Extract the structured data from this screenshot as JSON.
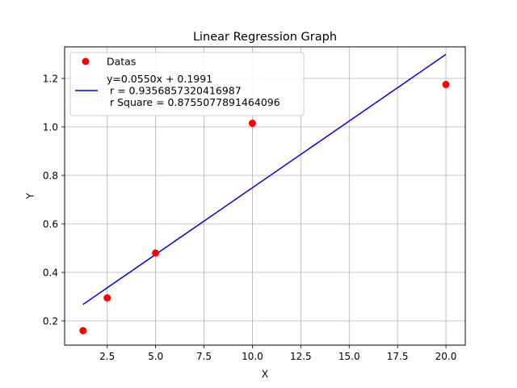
{
  "chart_data": {
    "type": "scatter",
    "title": "Linear Regression Graph",
    "xlabel": "X",
    "ylabel": "Y",
    "xlim": [
      0.3,
      21.0
    ],
    "ylim": [
      0.1,
      1.33
    ],
    "xticks": [
      2.5,
      5.0,
      7.5,
      10.0,
      12.5,
      15.0,
      17.5,
      20.0
    ],
    "xtick_labels": [
      "2.5",
      "5.0",
      "7.5",
      "10.0",
      "12.5",
      "15.0",
      "17.5",
      "20.0"
    ],
    "yticks": [
      0.2,
      0.4,
      0.6,
      0.8,
      1.0,
      1.2
    ],
    "ytick_labels": [
      "0.2",
      "0.4",
      "0.6",
      "0.8",
      "1.0",
      "1.2"
    ],
    "grid": true,
    "legend_position": "top-left",
    "series": [
      {
        "name": "Datas",
        "kind": "scatter",
        "color": "#ff0000",
        "x": [
          1.25,
          2.5,
          5.0,
          10.0,
          20.0
        ],
        "y": [
          0.16,
          0.295,
          0.48,
          1.015,
          1.175
        ]
      },
      {
        "name": "y=0.0550x + 0.1991\n r =  0.9356857320416987\n r Square = 0.8755077891464096",
        "kind": "line",
        "color": "#0000ff",
        "x": [
          1.25,
          20.0
        ],
        "y": [
          0.268,
          1.299
        ]
      }
    ]
  }
}
